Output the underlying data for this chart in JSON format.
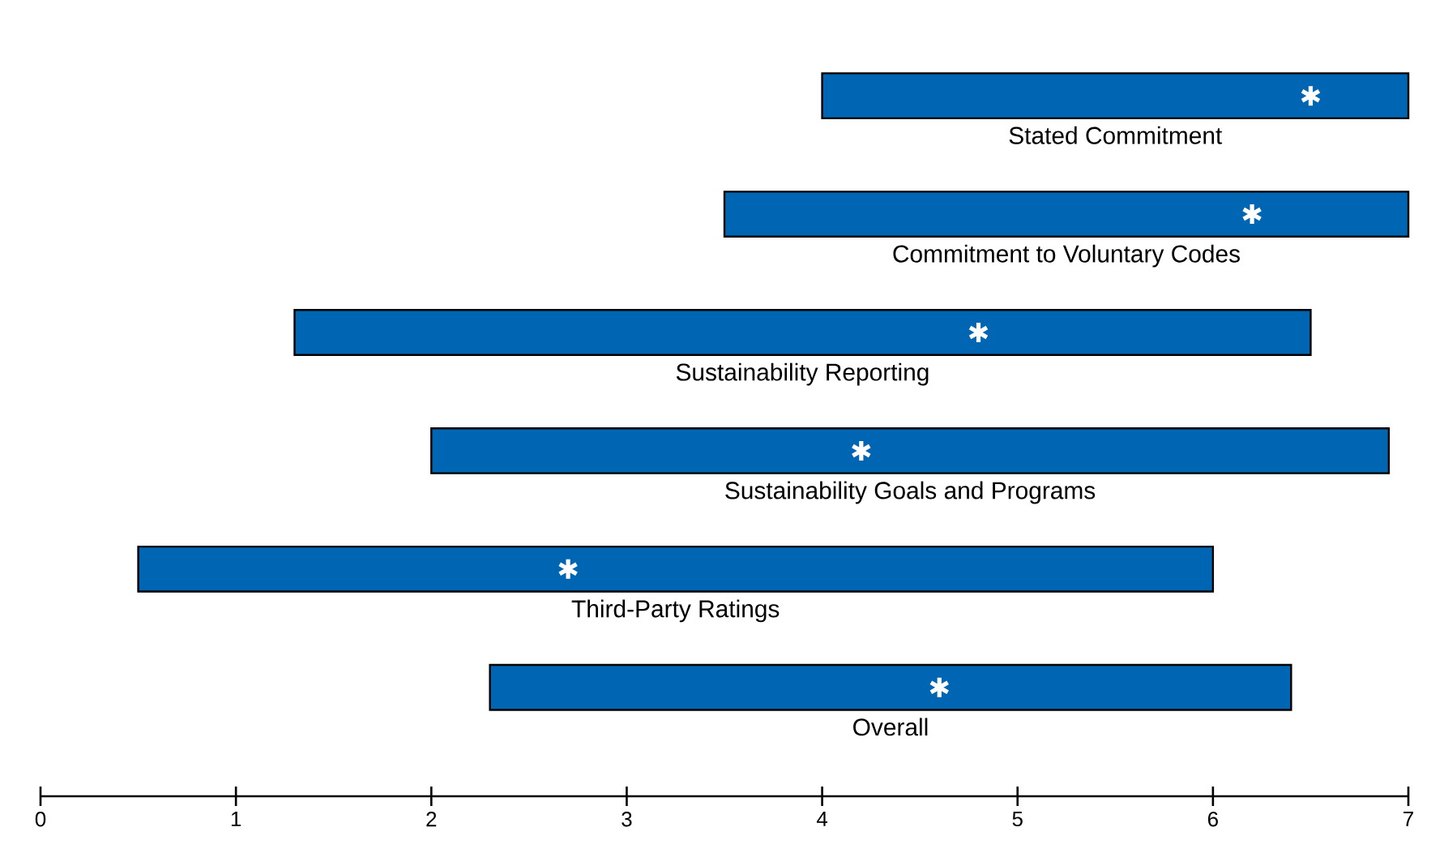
{
  "chart_data": {
    "type": "bar",
    "orientation": "horizontal",
    "categories": [
      "Stated Commitment",
      "Commitment to Voluntary Codes",
      "Sustainability Reporting",
      "Sustainability Goals and Programs",
      "Third-Party Ratings",
      "Overall"
    ],
    "series": [
      {
        "type": "bar",
        "color": "#0066b3",
        "base": [
          4.0,
          3.5,
          1.3,
          2.0,
          0.5,
          2.3
        ],
        "values": [
          3.0,
          3.5,
          5.2,
          4.9,
          5.5,
          4.1
        ]
      },
      {
        "type": "scatter",
        "color": "#ffffff",
        "marker": "cross",
        "values": [
          6.5,
          6.2,
          4.8,
          4.2,
          2.7,
          4.6
        ]
      }
    ],
    "xlim": [
      0,
      7
    ],
    "xticks": [
      0,
      1,
      2,
      3,
      4,
      5,
      6,
      7
    ],
    "grid": false
  }
}
